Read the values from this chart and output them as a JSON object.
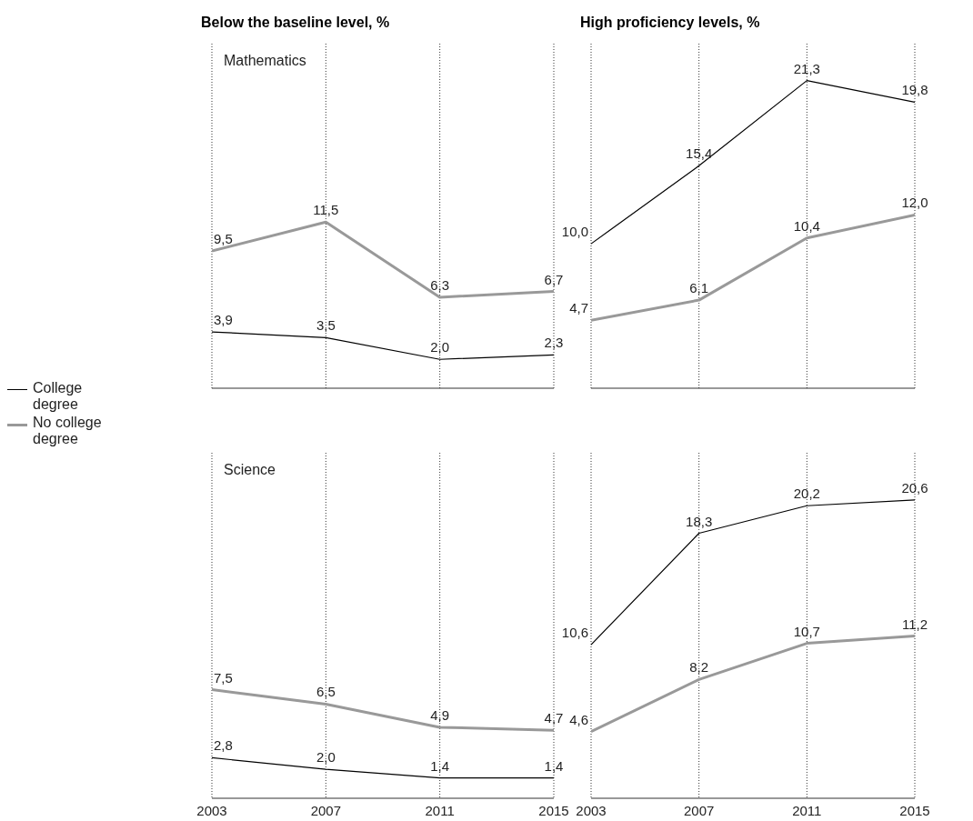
{
  "chart_data": [
    {
      "type": "line",
      "title": "Below the baseline level, %",
      "subtitle": "Mathematics",
      "categories": [
        "2003",
        "2007",
        "2011",
        "2015"
      ],
      "grid": "x",
      "line_style": "solid",
      "marker": "none",
      "legend": "left",
      "tick_labels": false,
      "series": [
        {
          "name": "College degree",
          "color": "#000000",
          "values": [
            3.9,
            3.5,
            2.0,
            2.3
          ],
          "value_labels": [
            "3,9",
            "3,5",
            "2,0",
            "2,3"
          ]
        },
        {
          "name": "No college degree",
          "color": "#999999",
          "values": [
            9.5,
            11.5,
            6.3,
            6.7
          ],
          "value_labels": [
            "9,5",
            "11,5",
            "6,3",
            "6,7"
          ]
        }
      ]
    },
    {
      "type": "line",
      "title": "High proficiency levels, %",
      "categories": [
        "2003",
        "2007",
        "2011",
        "2015"
      ],
      "grid": "x",
      "line_style": "solid",
      "marker": "none",
      "tick_labels": false,
      "series": [
        {
          "color": "#000000",
          "values": [
            10.0,
            15.4,
            21.3,
            19.8
          ],
          "value_labels": [
            "10,0",
            "15,4",
            "21,3",
            "19,8"
          ]
        },
        {
          "color": "#999999",
          "values": [
            4.7,
            6.1,
            10.4,
            12.0
          ],
          "value_labels": [
            "4,7",
            "6,1",
            "10,4",
            "12,0"
          ]
        }
      ]
    },
    {
      "type": "line",
      "subtitle": "Science",
      "categories": [
        "2003",
        "2007",
        "2011",
        "2015"
      ],
      "grid": "x",
      "line_style": "solid",
      "marker": "none",
      "tick_labels": "x",
      "series": [
        {
          "color": "#000000",
          "values": [
            2.8,
            2.0,
            1.4,
            1.4
          ],
          "value_labels": [
            "2,8",
            "2,0",
            "1,4",
            "1,4"
          ]
        },
        {
          "color": "#999999",
          "values": [
            7.5,
            6.5,
            4.9,
            4.7
          ],
          "value_labels": [
            "7,5",
            "6,5",
            "4,9",
            "4,7"
          ]
        }
      ]
    },
    {
      "type": "line",
      "categories": [
        "2003",
        "2007",
        "2011",
        "2015"
      ],
      "grid": "x",
      "line_style": "solid",
      "marker": "none",
      "tick_labels": "x",
      "series": [
        {
          "color": "#000000",
          "values": [
            10.6,
            18.3,
            20.2,
            20.6
          ],
          "value_labels": [
            "10,6",
            "18,3",
            "20,2",
            "20,6"
          ]
        },
        {
          "color": "#999999",
          "values": [
            4.6,
            8.2,
            10.7,
            11.2
          ],
          "value_labels": [
            "4,6",
            "8,2",
            "10,7",
            "11,2"
          ]
        }
      ]
    }
  ]
}
